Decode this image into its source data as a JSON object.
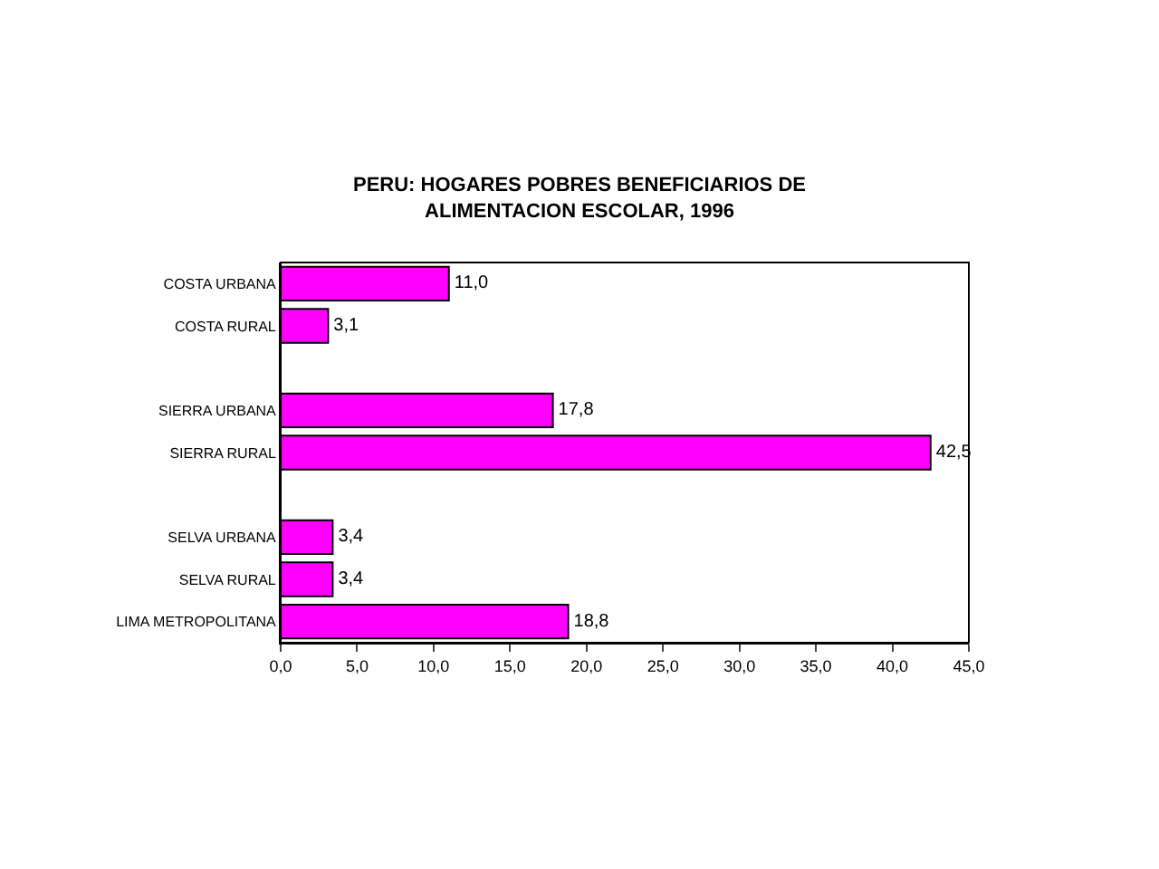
{
  "chart_data": {
    "type": "bar",
    "orientation": "horizontal",
    "title": "PERU: HOGARES POBRES BENEFICIARIOS DE\nALIMENTACION ESCOLAR, 1996",
    "categories": [
      "COSTA URBANA",
      "COSTA RURAL",
      null,
      "SIERRA URBANA",
      "SIERRA RURAL",
      null,
      "SELVA URBANA",
      "SELVA RURAL",
      "LIMA METROPOLITANA"
    ],
    "values": [
      11.0,
      3.1,
      null,
      17.8,
      42.5,
      null,
      3.4,
      3.4,
      18.8
    ],
    "value_labels": [
      "11,0",
      "3,1",
      null,
      "17,8",
      "42,5",
      null,
      "3,4",
      "3,4",
      "18,8"
    ],
    "color": "#ff00ff",
    "xlim": [
      0,
      45
    ],
    "xticks": [
      {
        "value": 0,
        "label": "0,0"
      },
      {
        "value": 5,
        "label": "5,0"
      },
      {
        "value": 10,
        "label": "10,0"
      },
      {
        "value": 15,
        "label": "15,0"
      },
      {
        "value": 20,
        "label": "20,0"
      },
      {
        "value": 25,
        "label": "25,0"
      },
      {
        "value": 30,
        "label": "30,0"
      },
      {
        "value": 35,
        "label": "35,0"
      },
      {
        "value": 40,
        "label": "40,0"
      },
      {
        "value": 45,
        "label": "45,0"
      }
    ],
    "grid": false,
    "legend": false
  }
}
